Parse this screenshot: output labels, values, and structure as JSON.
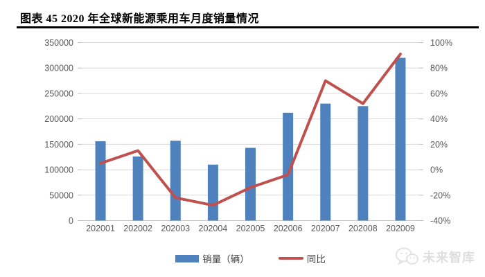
{
  "page": {
    "title": "图表 45 2020 年全球新能源乘用车月度销量情况",
    "watermark": "未来智库"
  },
  "legend": {
    "sales_label": "销量（辆）",
    "yoy_label": "同比"
  },
  "chart_data": {
    "type": "bar",
    "subtype": "bar-line combo, dual y-axis",
    "title": "图表 45 2020 年全球新能源乘用车月度销量情况",
    "categories": [
      "202001",
      "202002",
      "202003",
      "202004",
      "202005",
      "202006",
      "202007",
      "202008",
      "202009"
    ],
    "series": [
      {
        "name": "销量（辆）",
        "type": "bar",
        "axis": "left",
        "values": [
          156000,
          126000,
          157000,
          110000,
          143000,
          212000,
          230000,
          225000,
          320000
        ]
      },
      {
        "name": "同比",
        "type": "line",
        "axis": "right",
        "unit": "%",
        "values": [
          5,
          15,
          -22,
          -28,
          -14,
          -4,
          70,
          52,
          91
        ]
      }
    ],
    "y_left_axis": {
      "min": 0,
      "max": 350000,
      "step": 50000,
      "ticks": [
        0,
        50000,
        100000,
        150000,
        200000,
        250000,
        300000,
        350000
      ]
    },
    "y_right_axis": {
      "min": -40,
      "max": 100,
      "step": 20,
      "suffix": "%",
      "ticks": [
        -40,
        -20,
        0,
        20,
        40,
        60,
        80,
        100
      ]
    },
    "grid": true,
    "legend_position": "bottom"
  },
  "colors": {
    "bar": "#4F81BD",
    "line": "#C0504D",
    "gridline": "#D9D9D9",
    "tick": "#BFBFBF",
    "axis_text": "#595959"
  }
}
